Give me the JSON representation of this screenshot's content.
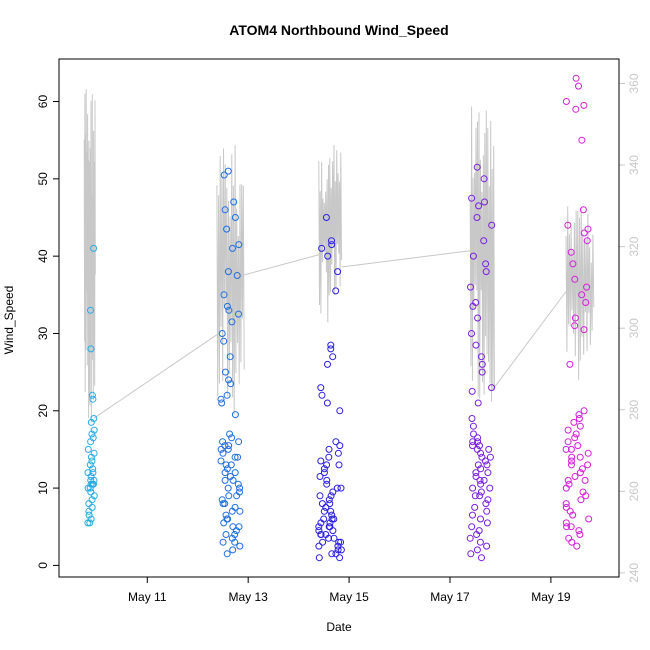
{
  "chart_data": {
    "type": "scatter",
    "title": "ATOM4 Northbound Wind_Speed",
    "xlabel": "Date",
    "ylabel": "Wind_Speed",
    "x_ticks": [
      "May 11",
      "May 13",
      "May 15",
      "May 17",
      "May 19"
    ],
    "x_tick_days": [
      11,
      13,
      15,
      17,
      19
    ],
    "xlim_days": [
      9.25,
      20.35
    ],
    "ylim": [
      -1.5,
      65.5
    ],
    "y_ticks": [
      "0",
      "10",
      "20",
      "30",
      "40",
      "50",
      "60"
    ],
    "y_tick_values": [
      0,
      10,
      20,
      30,
      40,
      50,
      60
    ],
    "secondary_axis": {
      "ylim": [
        239,
        366
      ],
      "ticks": [
        "240",
        "260",
        "280",
        "300",
        "320",
        "340",
        "360"
      ],
      "tick_values": [
        240,
        260,
        280,
        300,
        320,
        340,
        360
      ],
      "color": "#c8c8c8"
    },
    "marker": "open-circle",
    "point_color_scale": [
      "#29abe2",
      "#1f6fe0",
      "#2a1fe0",
      "#7a1fe0",
      "#d41fd8"
    ],
    "series": [
      {
        "day_range": [
          9.82,
          9.95
        ],
        "color": "#29abe2",
        "values": [
          41,
          33,
          28,
          22,
          21.5,
          19,
          18.5,
          17.5,
          17,
          16.5,
          16,
          15,
          14.5,
          14,
          13.5,
          13,
          12.5,
          12,
          11.5,
          11,
          10.5,
          10.5,
          10,
          10,
          9.5,
          9,
          8.5,
          8,
          7.5,
          7,
          6.5,
          6,
          5.5,
          5.5,
          11,
          10.5,
          12
        ]
      },
      {
        "day_range": [
          12.45,
          12.85
        ],
        "color": "#1f6fe0",
        "values": [
          51,
          50.5,
          47,
          46,
          45,
          43.5,
          41.5,
          41,
          38,
          37.5,
          35,
          33.5,
          33,
          32.5,
          31.5,
          30,
          29,
          27,
          25,
          24,
          23.5,
          22,
          21.5,
          21,
          19.5,
          17,
          16.5,
          16,
          16,
          15.5,
          15.5,
          15,
          15,
          14.5,
          14,
          14,
          13.5,
          13,
          13,
          12.5,
          12,
          12,
          11.5,
          11,
          11,
          10.5,
          10,
          10,
          9.5,
          9,
          9,
          8.5,
          8,
          8,
          7.5,
          7,
          7,
          6.5,
          6,
          6,
          5.5,
          5,
          5,
          4.5,
          4,
          4,
          3.5,
          3,
          3,
          2.5,
          2,
          1.5
        ]
      },
      {
        "day_range": [
          14.4,
          14.85
        ],
        "color": "#2a1fe0",
        "values": [
          45,
          42,
          41.5,
          41,
          40,
          38,
          35.5,
          28.5,
          28,
          27,
          26,
          23,
          22,
          21,
          20,
          16,
          15.5,
          15,
          14.5,
          14,
          13.5,
          13,
          13,
          12.5,
          12,
          11.5,
          11,
          10.5,
          10,
          10,
          9.5,
          9,
          9,
          8.5,
          8,
          8,
          7.5,
          7,
          7,
          6.5,
          6,
          6,
          6,
          5.5,
          5.5,
          5,
          5,
          5,
          4.5,
          4.5,
          4,
          4,
          4,
          3.5,
          3.5,
          3,
          3,
          3,
          2.5,
          2.5,
          2,
          2,
          1.5,
          1.5,
          1,
          1
        ]
      },
      {
        "day_range": [
          17.4,
          17.85
        ],
        "color": "#7a1fe0",
        "values": [
          51.5,
          50,
          47.5,
          47,
          46.5,
          45,
          44,
          42,
          40,
          39,
          38,
          36,
          34,
          33.5,
          32,
          30,
          28.5,
          27,
          26,
          25,
          23,
          22.5,
          21,
          19,
          18,
          17,
          16.5,
          16,
          16,
          15.5,
          15.5,
          15,
          15,
          14.5,
          14,
          14,
          13.5,
          13,
          13,
          12.5,
          12,
          12,
          11.5,
          11,
          11,
          10.5,
          10,
          10,
          9.5,
          9,
          9,
          8.5,
          8,
          7.5,
          7,
          6.5,
          6,
          5.5,
          5,
          4.5,
          4,
          3.5,
          3,
          2.5,
          2,
          1.5,
          1
        ]
      },
      {
        "day_range": [
          19.3,
          19.75
        ],
        "color": "#d41fd8",
        "values": [
          63,
          62,
          60,
          59.5,
          59,
          55,
          46,
          44,
          43.5,
          43,
          42,
          40.5,
          39,
          37,
          36,
          35,
          34,
          32,
          31,
          30.5,
          26,
          20,
          19.5,
          19,
          18.5,
          18,
          17.5,
          17,
          16.5,
          16,
          15.5,
          15,
          15,
          14.5,
          14,
          14,
          13.5,
          13,
          13,
          12.5,
          12,
          11.5,
          11,
          11,
          10.5,
          10,
          9.5,
          9,
          8.5,
          8,
          7.5,
          7,
          6.5,
          6,
          5.5,
          5,
          5,
          4.5,
          4,
          3.5,
          3,
          2.5
        ]
      }
    ],
    "gray_line": {
      "axis": "secondary",
      "color": "#c8c8c8",
      "connectors": [
        {
          "day": 9.95,
          "value": 278
        },
        {
          "day": 12.45,
          "value": 299
        },
        {
          "day": 12.9,
          "value": 313
        },
        {
          "day": 14.4,
          "value": 318
        },
        {
          "day": 14.85,
          "value": 315
        },
        {
          "day": 17.4,
          "value": 319
        },
        {
          "day": 17.85,
          "value": 285
        },
        {
          "day": 19.3,
          "value": 309
        }
      ],
      "bursts": [
        {
          "day_range": [
            9.75,
            9.97
          ],
          "low": 275,
          "high": 361
        },
        {
          "day_range": [
            12.38,
            12.92
          ],
          "low": 276,
          "high": 346
        },
        {
          "day_range": [
            14.4,
            14.85
          ],
          "low": 301,
          "high": 345
        },
        {
          "day_range": [
            17.4,
            17.88
          ],
          "low": 282,
          "high": 355
        },
        {
          "day_range": [
            19.3,
            19.85
          ],
          "low": 286,
          "high": 330
        }
      ]
    }
  }
}
